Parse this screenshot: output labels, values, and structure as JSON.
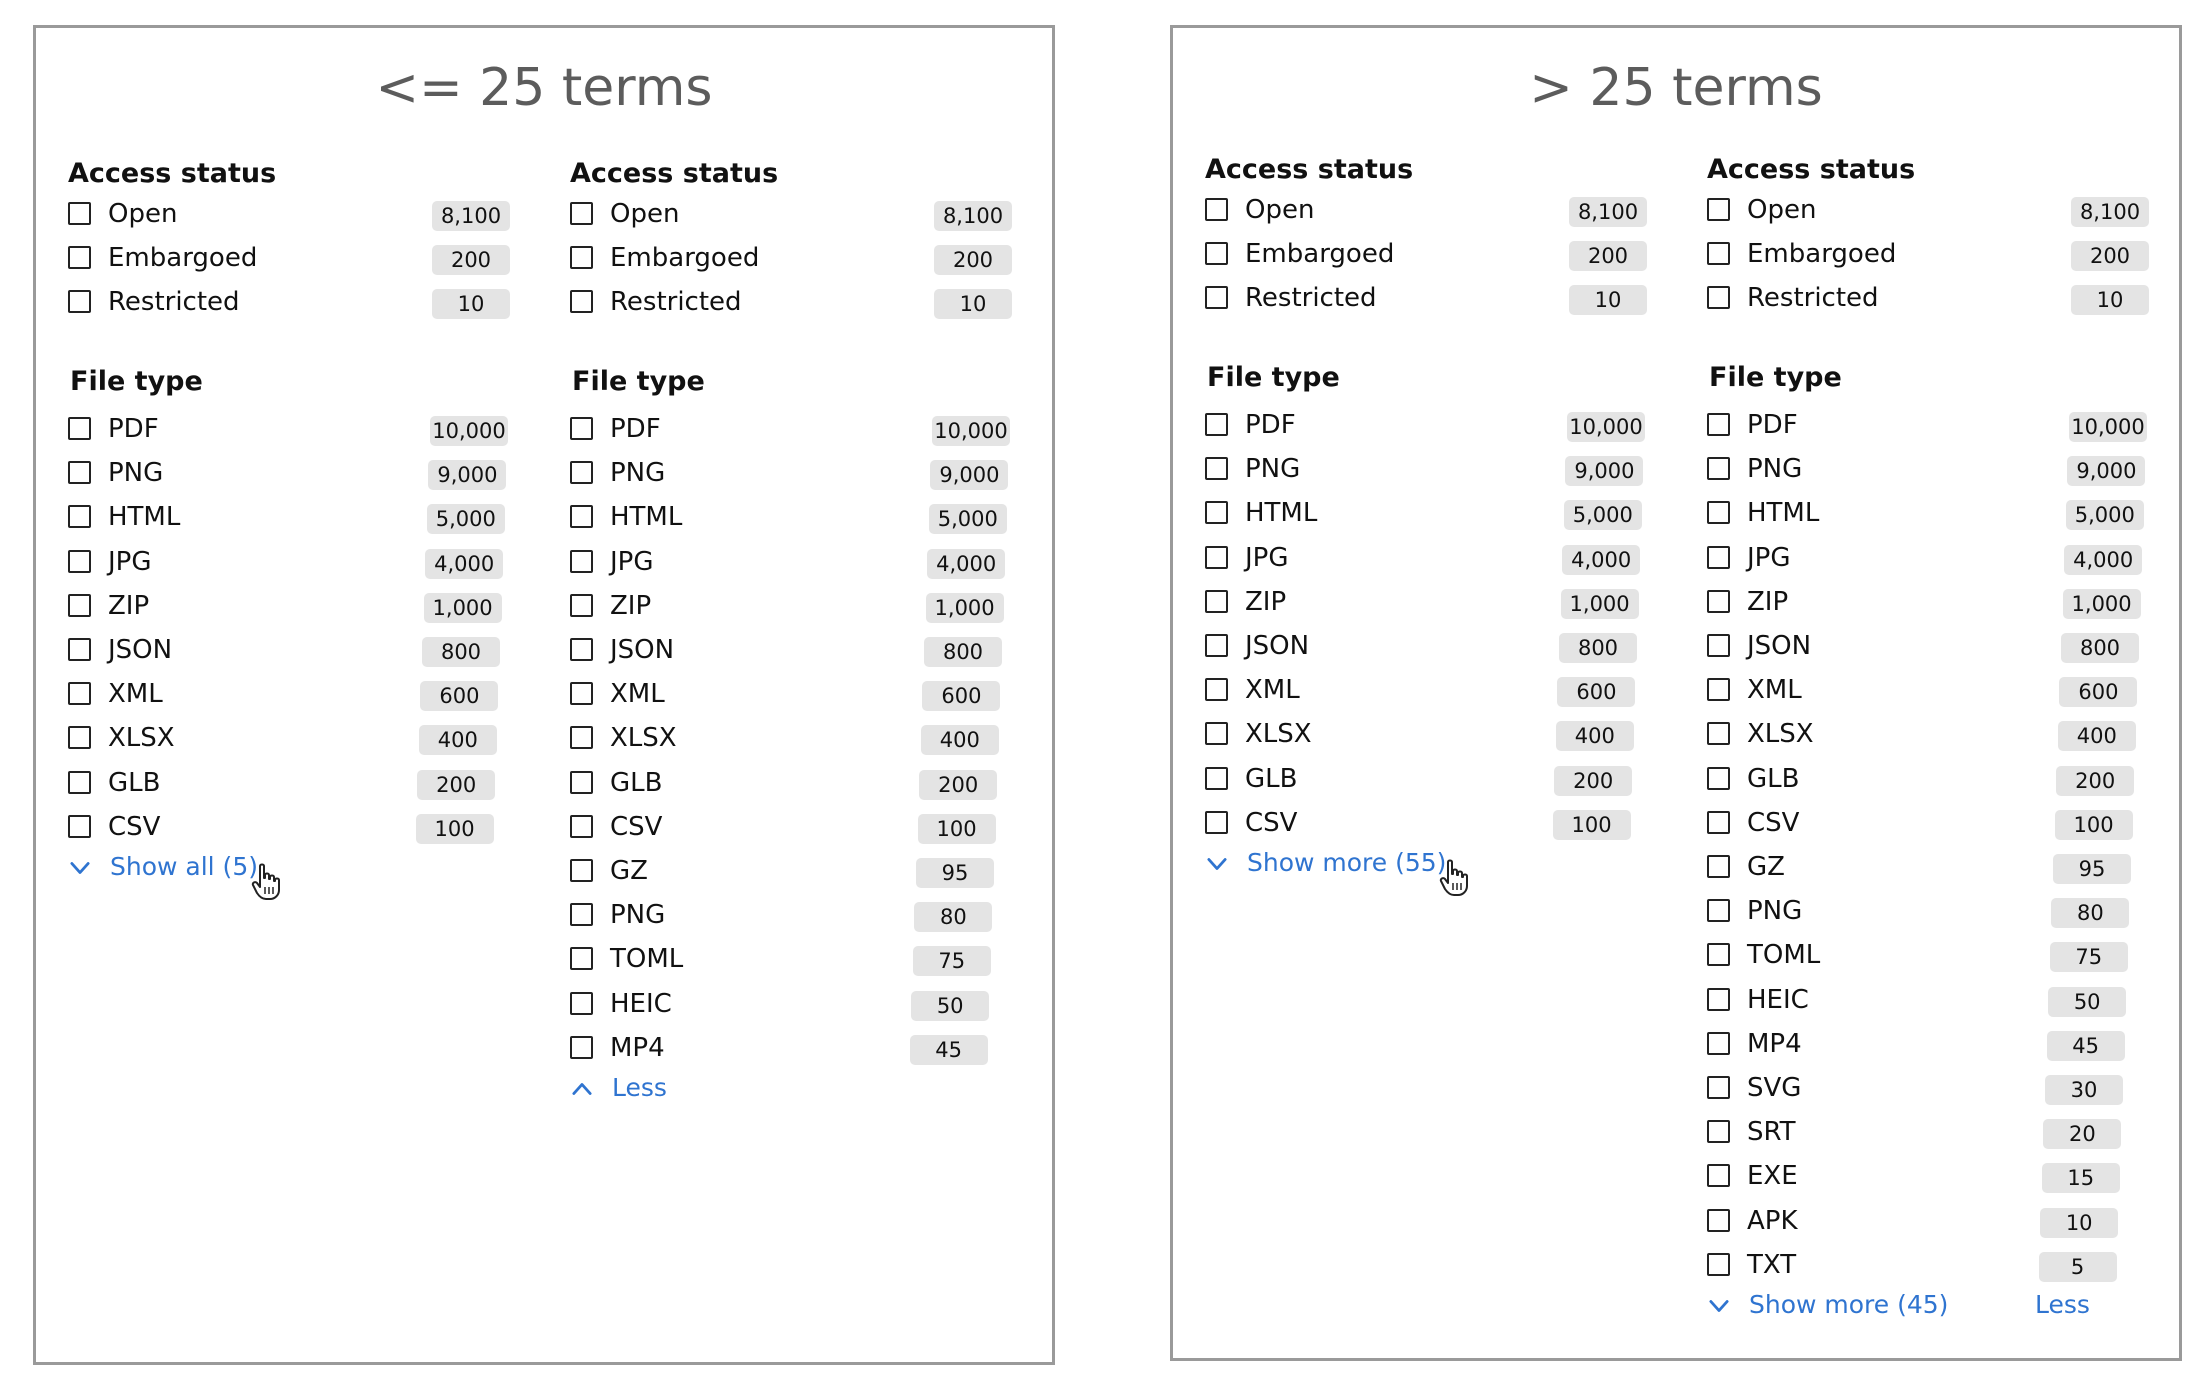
{
  "panels": [
    {
      "title": "<= 25 terms",
      "columns": [
        {
          "access": {
            "title": "Access status",
            "items": [
              {
                "label": "Open",
                "count": "8,100"
              },
              {
                "label": "Embargoed",
                "count": "200"
              },
              {
                "label": "Restricted",
                "count": "10"
              }
            ]
          },
          "filetype": {
            "title": "File type",
            "items": [
              {
                "label": "PDF",
                "count": "10,000"
              },
              {
                "label": "PNG",
                "count": "9,000"
              },
              {
                "label": "HTML",
                "count": "5,000"
              },
              {
                "label": "JPG",
                "count": "4,000"
              },
              {
                "label": "ZIP",
                "count": "1,000"
              },
              {
                "label": "JSON",
                "count": "800"
              },
              {
                "label": "XML",
                "count": "600"
              },
              {
                "label": "XLSX",
                "count": "400"
              },
              {
                "label": "GLB",
                "count": "200"
              },
              {
                "label": "CSV",
                "count": "100"
              }
            ],
            "toggle": {
              "label": "Show all (5)",
              "direction": "down",
              "cursor": true
            }
          }
        },
        {
          "access": {
            "title": "Access status",
            "items": [
              {
                "label": "Open",
                "count": "8,100"
              },
              {
                "label": "Embargoed",
                "count": "200"
              },
              {
                "label": "Restricted",
                "count": "10"
              }
            ]
          },
          "filetype": {
            "title": "File type",
            "items": [
              {
                "label": "PDF",
                "count": "10,000"
              },
              {
                "label": "PNG",
                "count": "9,000"
              },
              {
                "label": "HTML",
                "count": "5,000"
              },
              {
                "label": "JPG",
                "count": "4,000"
              },
              {
                "label": "ZIP",
                "count": "1,000"
              },
              {
                "label": "JSON",
                "count": "800"
              },
              {
                "label": "XML",
                "count": "600"
              },
              {
                "label": "XLSX",
                "count": "400"
              },
              {
                "label": "GLB",
                "count": "200"
              },
              {
                "label": "CSV",
                "count": "100"
              },
              {
                "label": "GZ",
                "count": "95"
              },
              {
                "label": "PNG",
                "count": "80"
              },
              {
                "label": "TOML",
                "count": "75"
              },
              {
                "label": "HEIC",
                "count": "50"
              },
              {
                "label": "MP4",
                "count": "45"
              }
            ],
            "toggle": {
              "label": "Less",
              "direction": "up",
              "cursor": false
            }
          }
        }
      ]
    },
    {
      "title": "> 25 terms",
      "columns": [
        {
          "access": {
            "title": "Access status",
            "items": [
              {
                "label": "Open",
                "count": "8,100"
              },
              {
                "label": "Embargoed",
                "count": "200"
              },
              {
                "label": "Restricted",
                "count": "10"
              }
            ]
          },
          "filetype": {
            "title": "File type",
            "items": [
              {
                "label": "PDF",
                "count": "10,000"
              },
              {
                "label": "PNG",
                "count": "9,000"
              },
              {
                "label": "HTML",
                "count": "5,000"
              },
              {
                "label": "JPG",
                "count": "4,000"
              },
              {
                "label": "ZIP",
                "count": "1,000"
              },
              {
                "label": "JSON",
                "count": "800"
              },
              {
                "label": "XML",
                "count": "600"
              },
              {
                "label": "XLSX",
                "count": "400"
              },
              {
                "label": "GLB",
                "count": "200"
              },
              {
                "label": "CSV",
                "count": "100"
              }
            ],
            "toggle": {
              "label": "Show more (55)",
              "direction": "down",
              "cursor": true
            }
          }
        },
        {
          "access": {
            "title": "Access status",
            "items": [
              {
                "label": "Open",
                "count": "8,100"
              },
              {
                "label": "Embargoed",
                "count": "200"
              },
              {
                "label": "Restricted",
                "count": "10"
              }
            ]
          },
          "filetype": {
            "title": "File type",
            "items": [
              {
                "label": "PDF",
                "count": "10,000"
              },
              {
                "label": "PNG",
                "count": "9,000"
              },
              {
                "label": "HTML",
                "count": "5,000"
              },
              {
                "label": "JPG",
                "count": "4,000"
              },
              {
                "label": "ZIP",
                "count": "1,000"
              },
              {
                "label": "JSON",
                "count": "800"
              },
              {
                "label": "XML",
                "count": "600"
              },
              {
                "label": "XLSX",
                "count": "400"
              },
              {
                "label": "GLB",
                "count": "200"
              },
              {
                "label": "CSV",
                "count": "100"
              },
              {
                "label": "GZ",
                "count": "95"
              },
              {
                "label": "PNG",
                "count": "80"
              },
              {
                "label": "TOML",
                "count": "75"
              },
              {
                "label": "HEIC",
                "count": "50"
              },
              {
                "label": "MP4",
                "count": "45"
              },
              {
                "label": "SVG",
                "count": "30"
              },
              {
                "label": "SRT",
                "count": "20"
              },
              {
                "label": "EXE",
                "count": "15"
              },
              {
                "label": "APK",
                "count": "10"
              },
              {
                "label": "TXT",
                "count": "5"
              }
            ],
            "toggle": {
              "label": "Show more (45)",
              "direction": "down",
              "cursor": false
            },
            "toggle_secondary": {
              "label": "Less"
            }
          }
        }
      ]
    }
  ],
  "colors": {
    "link": "#2f74d0",
    "badge": "#e4e4e4",
    "border": "#9a9a9a",
    "title": "#5c5c5c"
  },
  "icons": [
    "checkbox-icon",
    "chevron-down-icon",
    "chevron-up-icon",
    "hand-pointer-icon"
  ]
}
